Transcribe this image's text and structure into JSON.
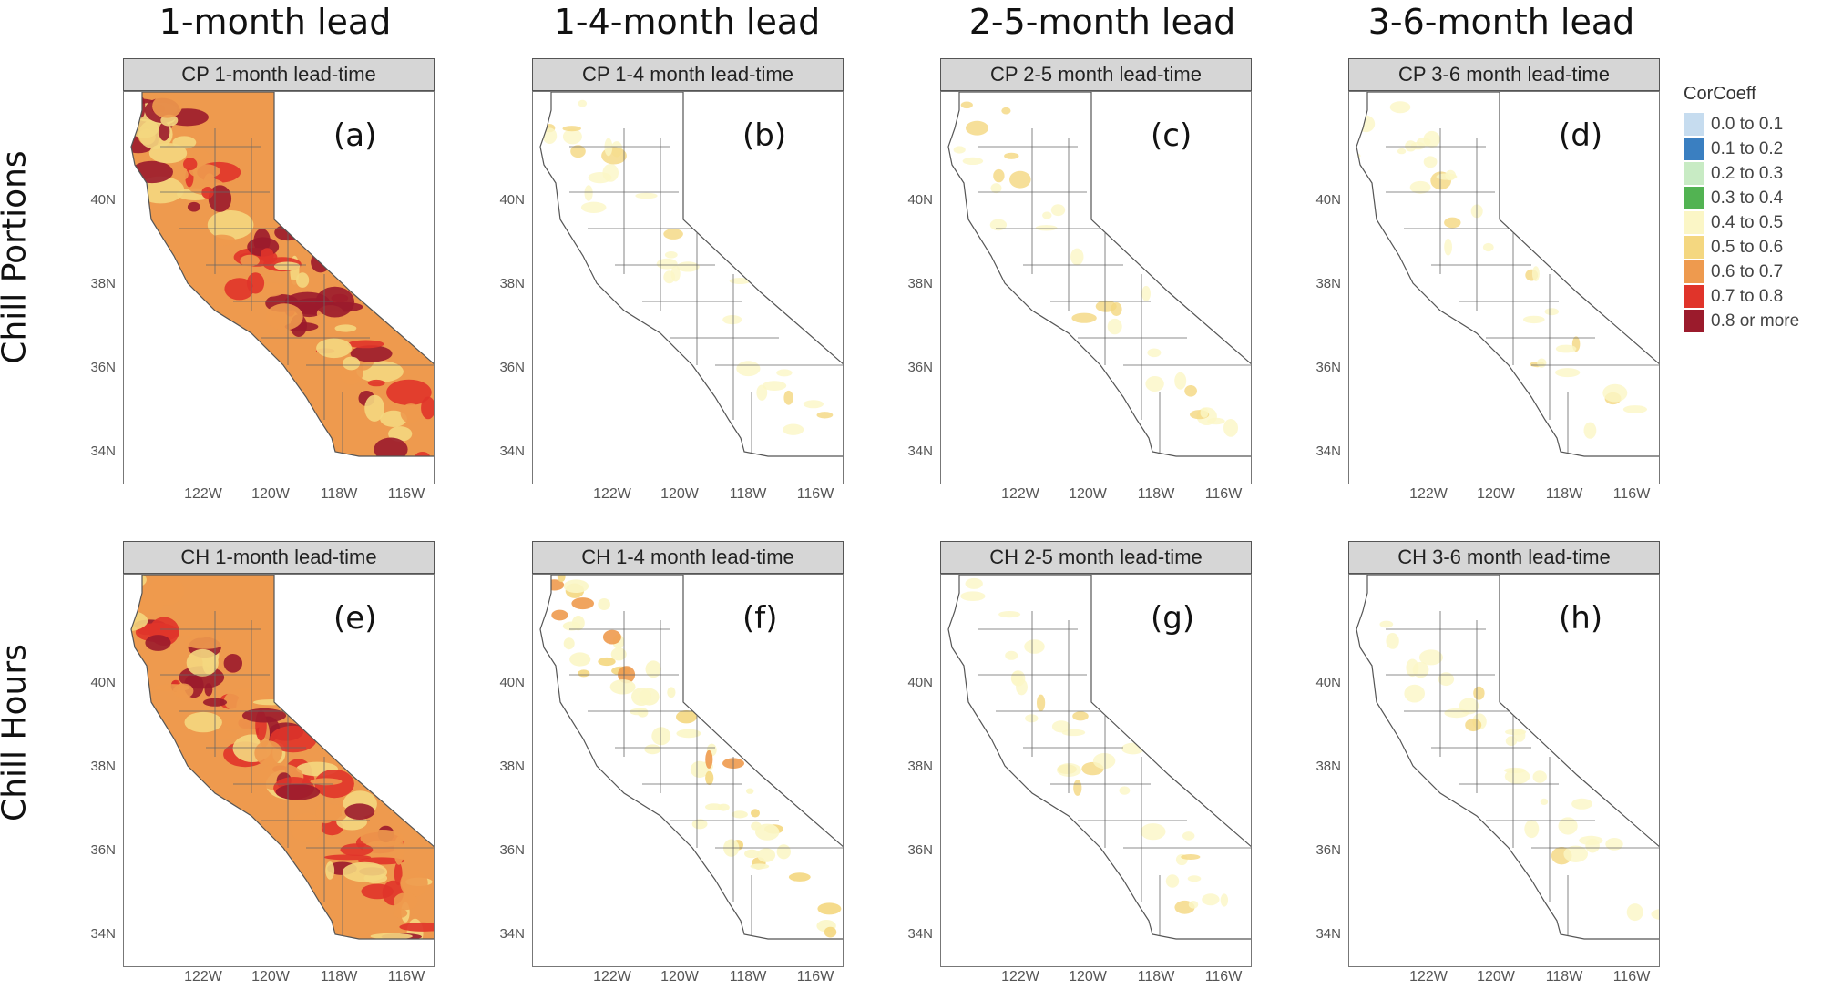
{
  "column_titles": [
    "1-month lead",
    "1-4-month lead",
    "2-5-month lead",
    "3-6-month lead"
  ],
  "row_titles": [
    "Chill Portions",
    "Chill Hours"
  ],
  "panels": [
    {
      "strip": "CP 1-month lead-time",
      "label": "(a)",
      "intensity": "high"
    },
    {
      "strip": "CP 1-4 month lead-time",
      "label": "(b)",
      "intensity": "low"
    },
    {
      "strip": "CP 2-5 month lead-time",
      "label": "(c)",
      "intensity": "low"
    },
    {
      "strip": "CP 3-6 month lead-time",
      "label": "(d)",
      "intensity": "low"
    },
    {
      "strip": "CH 1-month lead-time",
      "label": "(e)",
      "intensity": "high"
    },
    {
      "strip": "CH 1-4 month lead-time",
      "label": "(f)",
      "intensity": "medium"
    },
    {
      "strip": "CH 2-5 month lead-time",
      "label": "(g)",
      "intensity": "low"
    },
    {
      "strip": "CH 3-6 month lead-time",
      "label": "(h)",
      "intensity": "low"
    }
  ],
  "y_ticks": [
    "40N",
    "38N",
    "36N",
    "34N"
  ],
  "x_ticks": [
    "122W",
    "120W",
    "118W",
    "116W"
  ],
  "legend": {
    "title": "CorCoeff",
    "items": [
      {
        "label": "0.0 to 0.1",
        "color": "#c6dcef"
      },
      {
        "label": "0.1 to 0.2",
        "color": "#3a7fc1"
      },
      {
        "label": "0.2 to 0.3",
        "color": "#c8ebc4"
      },
      {
        "label": "0.3 to 0.4",
        "color": "#52b352"
      },
      {
        "label": "0.4 to 0.5",
        "color": "#fbf6c6"
      },
      {
        "label": "0.5 to 0.6",
        "color": "#f4d780"
      },
      {
        "label": "0.6 to 0.7",
        "color": "#ee9a4e"
      },
      {
        "label": "0.7 to 0.8",
        "color": "#e0342a"
      },
      {
        "label": "0.8 or more",
        "color": "#9b1b2c"
      }
    ]
  }
}
